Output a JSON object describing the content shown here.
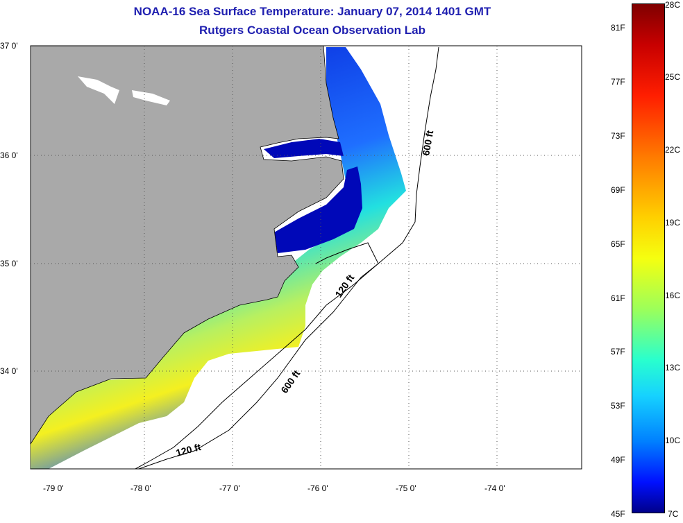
{
  "header": {
    "title": "NOAA-16 Sea Surface Temperature:  January 07, 2014 1401 GMT",
    "subtitle": "Rutgers Coastal Ocean Observation Lab"
  },
  "map": {
    "lat_labels": [
      "37 0'",
      "36 0'",
      "35 0'",
      "34 0'"
    ],
    "lon_labels": [
      "-79 0'",
      "-78 0'",
      "-77 0'",
      "-76 0'",
      "-75 0'",
      "-74 0'"
    ],
    "isobaths": [
      "600 ft",
      "120 ft",
      "600 ft",
      "120 ft"
    ],
    "colors": {
      "land": "#a9a9a9",
      "water_cold": "#0010c0",
      "water_warm": "#f0f020"
    }
  },
  "colorbar": {
    "fahrenheit": [
      "81F",
      "77F",
      "73F",
      "69F",
      "65F",
      "61F",
      "57F",
      "53F",
      "49F",
      "45F"
    ],
    "celsius": [
      "28C",
      "25C",
      "22C",
      "19C",
      "16C",
      "13C",
      "10C",
      "7C"
    ]
  }
}
